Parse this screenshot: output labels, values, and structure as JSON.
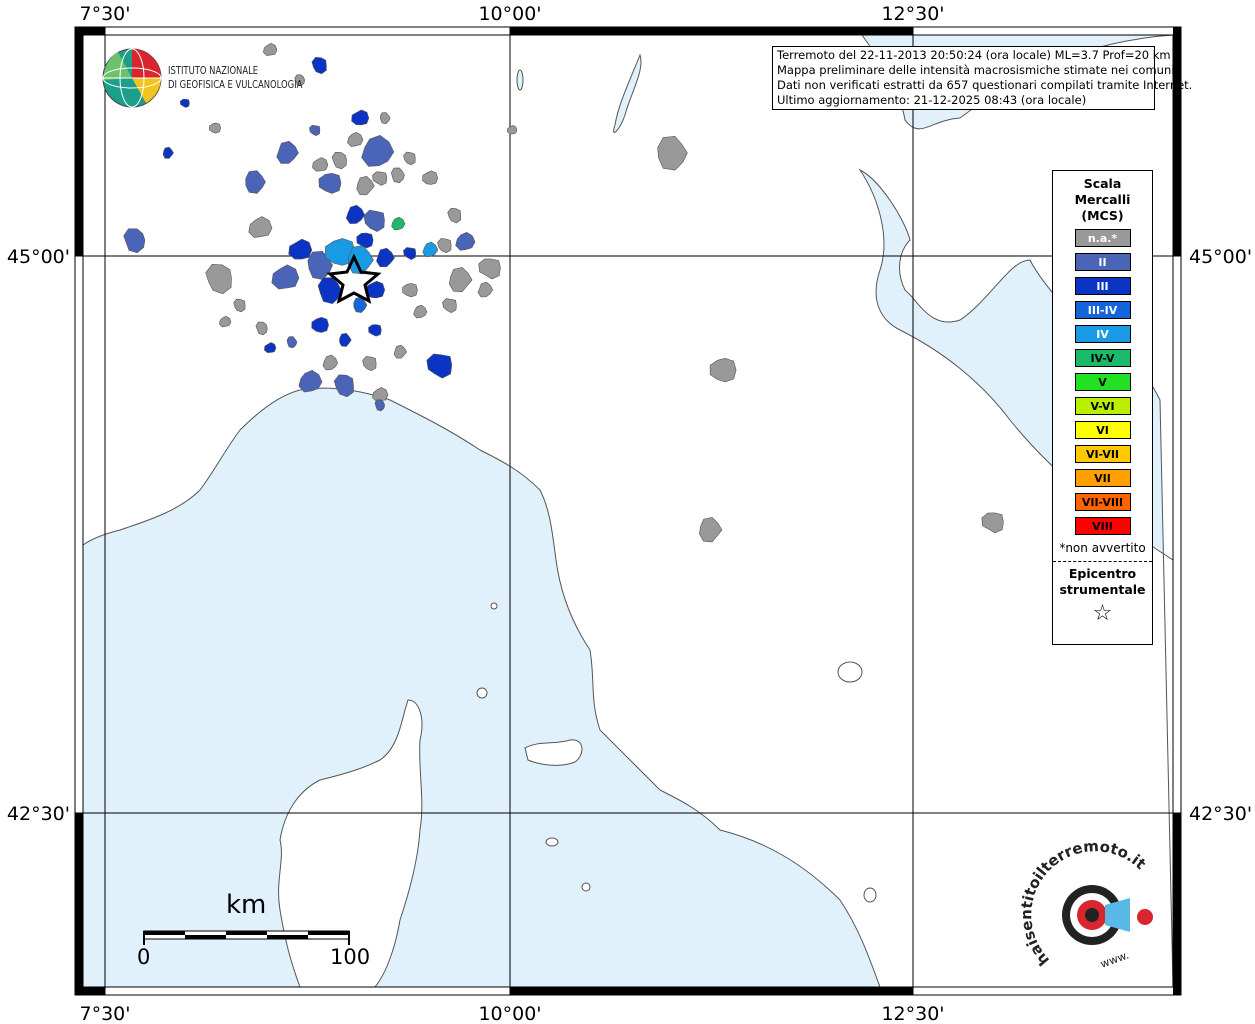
{
  "map": {
    "coord_labels": {
      "top": [
        "7°30'",
        "10°00'",
        "12°30'"
      ],
      "bottom": [
        "7°30'",
        "10°00'",
        "12°30'"
      ],
      "left": [
        "45°00'",
        "42°30'"
      ],
      "right": [
        "45°00'",
        "42°30'"
      ]
    },
    "colors": {
      "sea": "#e0f1fc",
      "land": "#ffffff",
      "na": "#999999",
      "II": "#4a64b8",
      "III": "#0b34c4",
      "III-IV": "#1466d8",
      "IV": "#1a9ae4",
      "IV-V": "#1aba6a"
    }
  },
  "info": {
    "line1": "Terremoto del 22-11-2013 20:50:24 (ora locale) ML=3.7 Prof=20 km",
    "line2": "Mappa preliminare delle intensità macrosismiche stimate nei comuni",
    "line3": "Dati non verificati estratti da 657 questionari compilati tramite Internet.",
    "line4": "Ultimo aggiornamento: 21-12-2025 08:43 (ora locale)"
  },
  "ingv": {
    "line1": "ISTITUTO NAZIONALE",
    "line2": "DI GEOFISICA E VULCANOLOGIA"
  },
  "legend": {
    "title": [
      "Scala",
      "Mercalli",
      "(MCS)"
    ],
    "items": [
      {
        "label": "n.a.*",
        "color": "#999999",
        "text": "#ffffff"
      },
      {
        "label": "II",
        "color": "#4a64b8",
        "text": "#ffffff"
      },
      {
        "label": "III",
        "color": "#0b34c4",
        "text": "#ffffff"
      },
      {
        "label": "III-IV",
        "color": "#1466d8",
        "text": "#ffffff"
      },
      {
        "label": "IV",
        "color": "#1a9ae4",
        "text": "#ffffff"
      },
      {
        "label": "IV-V",
        "color": "#1aba6a",
        "text": "#000000"
      },
      {
        "label": "V",
        "color": "#22e022",
        "text": "#000000"
      },
      {
        "label": "V-VI",
        "color": "#b8f000",
        "text": "#000000"
      },
      {
        "label": "VI",
        "color": "#ffff00",
        "text": "#000000"
      },
      {
        "label": "VI-VII",
        "color": "#ffc800",
        "text": "#000000"
      },
      {
        "label": "VII",
        "color": "#ffa000",
        "text": "#000000"
      },
      {
        "label": "VII-VIII",
        "color": "#ff6400",
        "text": "#000000"
      },
      {
        "label": "VIII",
        "color": "#ff0000",
        "text": "#000000"
      }
    ],
    "note": "*non avvertito",
    "epicentre": [
      "Epicentro",
      "strumentale"
    ],
    "star": "☆"
  },
  "scale_bar": {
    "unit": "km",
    "start": "0",
    "end": "100"
  },
  "logo": {
    "text": "haisentitoilterremoto.it",
    "www": "www."
  }
}
